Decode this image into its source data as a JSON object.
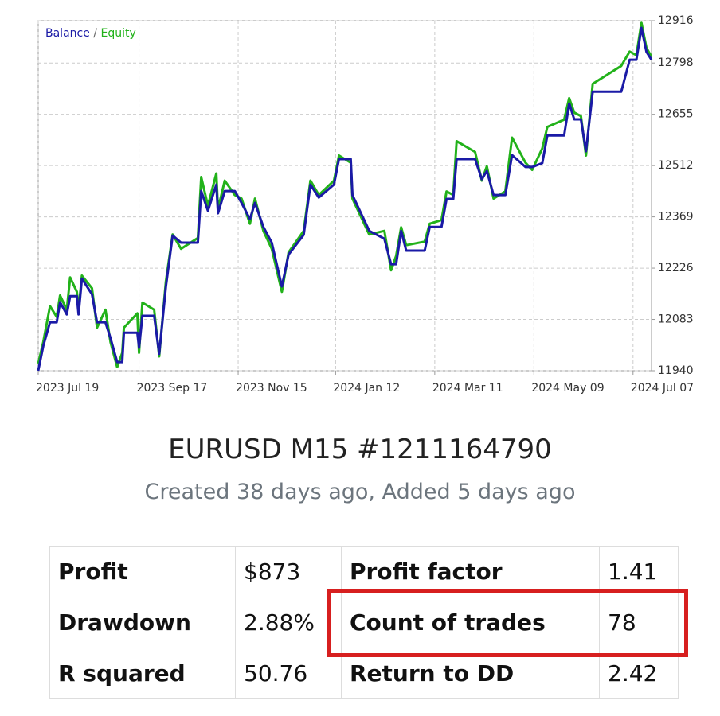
{
  "chart_data": {
    "type": "line",
    "legend_separator": "/",
    "x": [
      "2023-07-19",
      "2023-07-22",
      "2023-07-26",
      "2023-07-30",
      "2023-08-01",
      "2023-08-05",
      "2023-08-07",
      "2023-08-11",
      "2023-08-12",
      "2023-08-14",
      "2023-08-20",
      "2023-08-23",
      "2023-08-28",
      "2023-08-31",
      "2023-09-04",
      "2023-09-07",
      "2023-09-08",
      "2023-09-16",
      "2023-09-17",
      "2023-09-19",
      "2023-09-26",
      "2023-09-29",
      "2023-10-03",
      "2023-10-07",
      "2023-10-12",
      "2023-10-22",
      "2023-10-24",
      "2023-10-28",
      "2023-11-02",
      "2023-11-03",
      "2023-11-07",
      "2023-11-13",
      "2023-11-17",
      "2023-11-22",
      "2023-11-25",
      "2023-11-30",
      "2023-12-05",
      "2023-12-11",
      "2023-12-15",
      "2023-12-24",
      "2023-12-28",
      "2024-01-02",
      "2024-01-11",
      "2024-01-14",
      "2024-01-21",
      "2024-01-22",
      "2024-02-01",
      "2024-02-10",
      "2024-02-14",
      "2024-02-17",
      "2024-02-20",
      "2024-02-23",
      "2024-03-05",
      "2024-03-08",
      "2024-03-15",
      "2024-03-18",
      "2024-03-22",
      "2024-03-24",
      "2024-04-04",
      "2024-04-08",
      "2024-04-11",
      "2024-04-15",
      "2024-04-22",
      "2024-04-26",
      "2024-05-04",
      "2024-05-08",
      "2024-05-14",
      "2024-05-17",
      "2024-05-27",
      "2024-05-30",
      "2024-06-02",
      "2024-06-06",
      "2024-06-09",
      "2024-06-13",
      "2024-06-30",
      "2024-07-05",
      "2024-07-09",
      "2024-07-12",
      "2024-07-15",
      "2024-07-18"
    ],
    "series": [
      {
        "name": "Balance",
        "color": "#1a1aa6",
        "values": [
          11940,
          12009,
          12075,
          12075,
          12131,
          12097,
          12148,
          12148,
          12097,
          12197,
          12153,
          12075,
          12075,
          12031,
          11964,
          11964,
          12046,
          12046,
          12004,
          12093,
          12093,
          11987,
          12175,
          12317,
          12297,
          12297,
          12441,
          12386,
          12459,
          12379,
          12441,
          12441,
          12408,
          12363,
          12408,
          12341,
          12297,
          12175,
          12264,
          12319,
          12459,
          12423,
          12459,
          12530,
          12530,
          12430,
          12330,
          12308,
          12237,
          12237,
          12330,
          12275,
          12275,
          12341,
          12341,
          12419,
          12419,
          12530,
          12530,
          12474,
          12497,
          12430,
          12430,
          12541,
          12508,
          12508,
          12519,
          12596,
          12596,
          12685,
          12641,
          12641,
          12552,
          12718,
          12718,
          12807,
          12807,
          12896,
          12829,
          12807
        ]
      },
      {
        "name": "Equity",
        "color": "#22b21a",
        "values": [
          11960,
          12020,
          12120,
          12090,
          12150,
          12110,
          12200,
          12160,
          12110,
          12205,
          12170,
          12060,
          12110,
          12020,
          11950,
          11990,
          12060,
          12100,
          11990,
          12130,
          12110,
          11980,
          12190,
          12320,
          12280,
          12310,
          12480,
          12400,
          12490,
          12390,
          12470,
          12430,
          12420,
          12350,
          12420,
          12330,
          12280,
          12160,
          12270,
          12330,
          12470,
          12430,
          12470,
          12540,
          12520,
          12420,
          12320,
          12330,
          12220,
          12260,
          12340,
          12290,
          12300,
          12350,
          12360,
          12440,
          12430,
          12580,
          12550,
          12470,
          12510,
          12420,
          12440,
          12590,
          12520,
          12500,
          12560,
          12620,
          12640,
          12700,
          12660,
          12650,
          12540,
          12740,
          12790,
          12830,
          12820,
          12910,
          12840,
          12815
        ]
      }
    ],
    "xlim": [
      "2023-07-19",
      "2024-07-18"
    ],
    "xticks": [
      {
        "value": "2023-07-19",
        "label": "2023 Jul 19"
      },
      {
        "value": "2023-09-17",
        "label": "2023 Sep 17"
      },
      {
        "value": "2023-11-15",
        "label": "2023 Nov 15"
      },
      {
        "value": "2024-01-12",
        "label": "2024 Jan 12"
      },
      {
        "value": "2024-03-11",
        "label": "2024 Mar 11"
      },
      {
        "value": "2024-05-09",
        "label": "2024 May 09"
      },
      {
        "value": "2024-07-07",
        "label": "2024 Jul 07"
      }
    ],
    "ylim": [
      11940,
      12916
    ],
    "yticks": [
      11940,
      12083,
      12226,
      12369,
      12512,
      12655,
      12798,
      12916
    ],
    "grid": true
  },
  "header": {
    "title": "EURUSD M15 #1211164790",
    "subtitle": "Created 38 days ago, Added 5 days ago"
  },
  "table": {
    "rows": [
      [
        "Profit",
        "$873",
        "Profit factor",
        "1.41"
      ],
      [
        "Drawdown",
        "2.88%",
        "Count of trades",
        "78"
      ],
      [
        "R squared",
        "50.76",
        "Return to DD",
        "2.42"
      ]
    ]
  }
}
